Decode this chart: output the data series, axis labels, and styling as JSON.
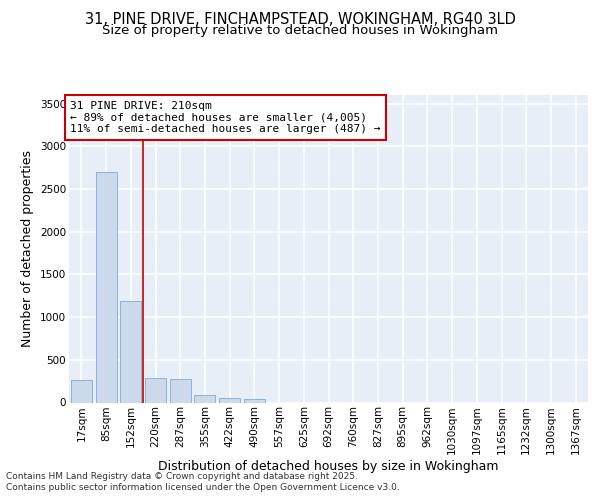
{
  "title_line1": "31, PINE DRIVE, FINCHAMPSTEAD, WOKINGHAM, RG40 3LD",
  "title_line2": "Size of property relative to detached houses in Wokingham",
  "xlabel": "Distribution of detached houses by size in Wokingham",
  "ylabel": "Number of detached properties",
  "categories": [
    "17sqm",
    "85sqm",
    "152sqm",
    "220sqm",
    "287sqm",
    "355sqm",
    "422sqm",
    "490sqm",
    "557sqm",
    "625sqm",
    "692sqm",
    "760sqm",
    "827sqm",
    "895sqm",
    "962sqm",
    "1030sqm",
    "1097sqm",
    "1165sqm",
    "1232sqm",
    "1300sqm",
    "1367sqm"
  ],
  "values": [
    260,
    2700,
    1190,
    285,
    275,
    90,
    55,
    40,
    0,
    0,
    0,
    0,
    0,
    0,
    0,
    0,
    0,
    0,
    0,
    0,
    0
  ],
  "bar_color": "#ccd9ea",
  "bar_edge_color": "#7aadd4",
  "vline_color": "#cc0000",
  "annotation_text": "31 PINE DRIVE: 210sqm\n← 89% of detached houses are smaller (4,005)\n11% of semi-detached houses are larger (487) →",
  "annotation_box_color": "white",
  "annotation_box_edge": "#cc0000",
  "ylim": [
    0,
    3600
  ],
  "yticks": [
    0,
    500,
    1000,
    1500,
    2000,
    2500,
    3000,
    3500
  ],
  "background_color": "#e8eef8",
  "grid_color": "white",
  "footer_line1": "Contains HM Land Registry data © Crown copyright and database right 2025.",
  "footer_line2": "Contains public sector information licensed under the Open Government Licence v3.0.",
  "title_fontsize": 10.5,
  "subtitle_fontsize": 9.5,
  "axis_label_fontsize": 9,
  "tick_fontsize": 7.5,
  "annotation_fontsize": 8,
  "footer_fontsize": 6.5
}
